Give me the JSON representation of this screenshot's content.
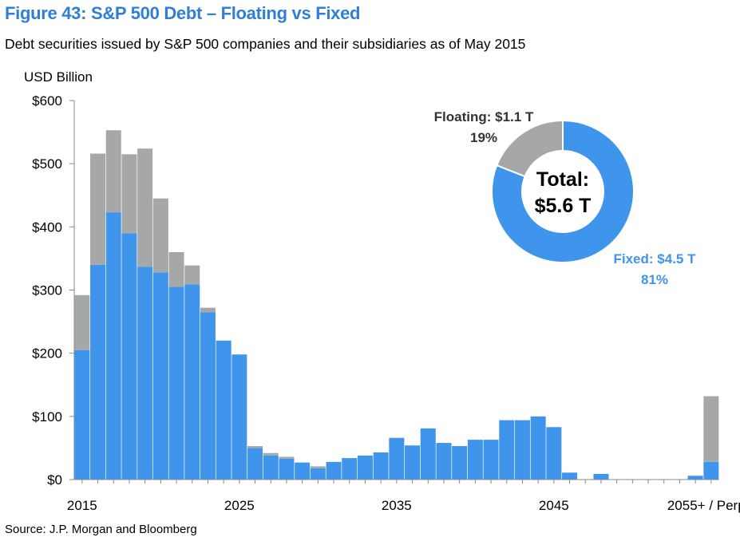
{
  "title": "Figure 43: S&P 500 Debt – Floating vs Fixed",
  "subtitle": "Debt securities issued by S&P 500 companies and their subsidiaries as of May 2015",
  "source": "Source: J.P. Morgan and Bloomberg",
  "colors": {
    "fixed": "#3f94ec",
    "floating": "#a6a8a7",
    "title": "#2f7fd6"
  },
  "chart_data": [
    {
      "type": "bar",
      "stacked": true,
      "ylabel": "USD Billion",
      "ylim": [
        0,
        600
      ],
      "yticks": [
        "$0",
        "$100",
        "$200",
        "$300",
        "$400",
        "$500",
        "$600"
      ],
      "xtick_labels": [
        "2015",
        "2025",
        "2035",
        "2045",
        "2055+ / Perp"
      ],
      "categories": [
        "2015",
        "2016",
        "2017",
        "2018",
        "2019",
        "2020",
        "2021",
        "2022",
        "2023",
        "2024",
        "2025",
        "2026",
        "2027",
        "2028",
        "2029",
        "2030",
        "2031",
        "2032",
        "2033",
        "2034",
        "2035",
        "2036",
        "2037",
        "2038",
        "2039",
        "2040",
        "2041",
        "2042",
        "2043",
        "2044",
        "2045",
        "2046",
        "2047",
        "2048",
        "2049",
        "2050",
        "2051",
        "2052",
        "2053",
        "2054",
        "2055+ / Perp"
      ],
      "series": [
        {
          "name": "Fixed",
          "values": [
            205,
            340,
            423,
            390,
            337,
            328,
            305,
            309,
            265,
            220,
            198,
            50,
            38,
            33,
            27,
            18,
            28,
            34,
            38,
            43,
            66,
            54,
            81,
            58,
            53,
            63,
            63,
            94,
            94,
            100,
            83,
            11,
            0,
            9,
            0,
            0,
            0,
            0,
            0,
            6,
            28
          ]
        },
        {
          "name": "Floating",
          "values": [
            87,
            176,
            130,
            125,
            187,
            117,
            55,
            30,
            7,
            0,
            0,
            3,
            4,
            3,
            0,
            3,
            0,
            0,
            0,
            0,
            0,
            0,
            0,
            0,
            0,
            0,
            0,
            0,
            0,
            0,
            0,
            0,
            0,
            0,
            0,
            0,
            0,
            0,
            0,
            0,
            104
          ]
        }
      ],
      "grid": false
    },
    {
      "type": "pie",
      "donut": true,
      "center_label": [
        "Total:",
        "$5.6 T"
      ],
      "slices": [
        {
          "name": "Floating",
          "value": 1.1,
          "percent": 19,
          "label": [
            "Floating: $1.1 T",
            "19%"
          ]
        },
        {
          "name": "Fixed",
          "value": 4.5,
          "percent": 81,
          "label": [
            "Fixed: $4.5 T",
            "81%"
          ]
        }
      ]
    }
  ]
}
